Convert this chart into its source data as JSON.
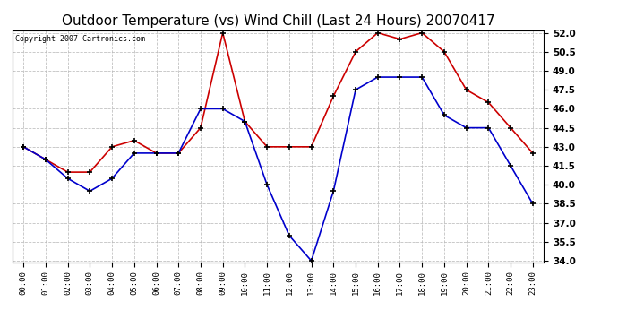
{
  "title": "Outdoor Temperature (vs) Wind Chill (Last 24 Hours) 20070417",
  "copyright": "Copyright 2007 Cartronics.com",
  "hours": [
    "00:00",
    "01:00",
    "02:00",
    "03:00",
    "04:00",
    "05:00",
    "06:00",
    "07:00",
    "08:00",
    "09:00",
    "10:00",
    "11:00",
    "12:00",
    "13:00",
    "14:00",
    "15:00",
    "16:00",
    "17:00",
    "18:00",
    "19:00",
    "20:00",
    "21:00",
    "22:00",
    "23:00"
  ],
  "temp": [
    43.0,
    42.0,
    41.0,
    41.0,
    43.0,
    43.5,
    42.5,
    42.5,
    44.5,
    52.0,
    45.0,
    43.0,
    43.0,
    43.0,
    47.0,
    50.5,
    52.0,
    51.5,
    52.0,
    50.5,
    47.5,
    46.5,
    44.5,
    42.5
  ],
  "windchill": [
    43.0,
    42.0,
    40.5,
    39.5,
    40.5,
    42.5,
    42.5,
    42.5,
    46.0,
    46.0,
    45.0,
    40.0,
    36.0,
    34.0,
    39.5,
    47.5,
    48.5,
    48.5,
    48.5,
    45.5,
    44.5,
    44.5,
    41.5,
    38.5
  ],
  "temp_color": "#cc0000",
  "windchill_color": "#0000cc",
  "ylim_min": 34.0,
  "ylim_max": 52.0,
  "yticks": [
    34.0,
    35.5,
    37.0,
    38.5,
    40.0,
    41.5,
    43.0,
    44.5,
    46.0,
    47.5,
    49.0,
    50.5,
    52.0
  ],
  "background_color": "#ffffff",
  "plot_bg_color": "#ffffff",
  "grid_color": "#bbbbbb",
  "title_fontsize": 11,
  "marker": "+",
  "marker_color": "#000000",
  "marker_size": 5,
  "linewidth": 1.2
}
